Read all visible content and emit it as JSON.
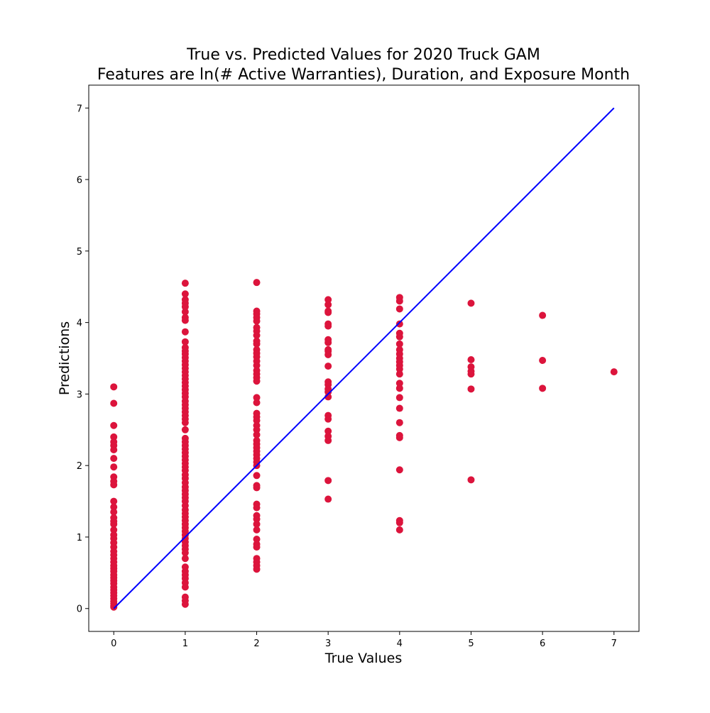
{
  "chart_data": {
    "type": "scatter",
    "title": "True vs. Predicted Values for 2020 Truck GAM",
    "subtitle": "Features are ln(# Active Warranties), Duration, and Exposure Month",
    "xlabel": "True Values",
    "ylabel": "Predictions",
    "xlim": [
      -0.35,
      7.35
    ],
    "ylim": [
      -0.32,
      7.32
    ],
    "xticks": [
      0,
      1,
      2,
      3,
      4,
      5,
      6,
      7
    ],
    "yticks": [
      0,
      1,
      2,
      3,
      4,
      5,
      6,
      7
    ],
    "grid": false,
    "legend": "none",
    "colors": {
      "points": "#dc143c",
      "reference_line": "#0000ff",
      "axes": "#000000"
    },
    "reference_line": {
      "x": [
        0,
        7
      ],
      "y": [
        0,
        7
      ]
    },
    "series": [
      {
        "x_value": 0,
        "y": [
          3.1,
          2.87,
          2.56,
          2.4,
          2.33,
          2.28,
          2.22,
          2.1,
          1.98,
          1.84,
          1.78,
          1.73,
          1.5,
          1.42,
          1.35,
          1.27,
          1.22,
          1.18,
          1.1,
          1.03,
          0.98,
          0.92,
          0.86,
          0.8,
          0.75,
          0.7,
          0.65,
          0.6,
          0.56,
          0.52,
          0.47,
          0.43,
          0.39,
          0.35,
          0.3,
          0.26,
          0.22,
          0.18,
          0.14,
          0.1,
          0.07,
          0.04,
          0.02
        ]
      },
      {
        "x_value": 1,
        "y": [
          4.55,
          4.4,
          4.32,
          4.27,
          4.22,
          4.15,
          4.07,
          4.03,
          3.87,
          3.73,
          3.65,
          3.6,
          3.56,
          3.51,
          3.46,
          3.41,
          3.36,
          3.31,
          3.26,
          3.21,
          3.16,
          3.11,
          3.06,
          3.01,
          2.96,
          2.9,
          2.85,
          2.8,
          2.75,
          2.7,
          2.65,
          2.6,
          2.5,
          2.38,
          2.33,
          2.28,
          2.23,
          2.18,
          2.13,
          2.08,
          2.03,
          1.98,
          1.93,
          1.87,
          1.82,
          1.76,
          1.7,
          1.65,
          1.6,
          1.55,
          1.5,
          1.44,
          1.38,
          1.33,
          1.28,
          1.23,
          1.18,
          1.13,
          1.08,
          1.03,
          0.98,
          0.93,
          0.88,
          0.83,
          0.78,
          0.7,
          0.58,
          0.52,
          0.47,
          0.42,
          0.36,
          0.3,
          0.16,
          0.11,
          0.06
        ]
      },
      {
        "x_value": 2,
        "y": [
          4.56,
          4.16,
          4.12,
          4.07,
          4.02,
          3.93,
          3.88,
          3.82,
          3.74,
          3.7,
          3.62,
          3.57,
          3.52,
          3.46,
          3.4,
          3.33,
          3.28,
          3.23,
          3.18,
          2.95,
          2.88,
          2.73,
          2.68,
          2.63,
          2.56,
          2.5,
          2.43,
          2.35,
          2.3,
          2.25,
          2.2,
          2.15,
          2.1,
          2.05,
          2.0,
          1.86,
          1.72,
          1.69,
          1.46,
          1.41,
          1.3,
          1.25,
          1.18,
          1.1,
          0.97,
          0.9,
          0.86,
          0.7,
          0.65,
          0.6,
          0.55
        ]
      },
      {
        "x_value": 3,
        "y": [
          4.32,
          4.25,
          4.16,
          4.14,
          3.98,
          3.95,
          3.76,
          3.72,
          3.62,
          3.6,
          3.55,
          3.39,
          3.17,
          3.13,
          3.07,
          3.03,
          2.96,
          2.7,
          2.65,
          2.48,
          2.41,
          2.35,
          1.79,
          1.53
        ]
      },
      {
        "x_value": 4,
        "y": [
          4.35,
          4.3,
          4.19,
          3.98,
          3.85,
          3.8,
          3.7,
          3.62,
          3.56,
          3.5,
          3.45,
          3.4,
          3.35,
          3.28,
          3.15,
          3.08,
          2.95,
          2.8,
          2.6,
          2.42,
          2.39,
          1.94,
          1.23,
          1.2,
          1.1
        ]
      },
      {
        "x_value": 5,
        "y": [
          4.27,
          3.48,
          3.38,
          3.32,
          3.28,
          3.07,
          1.8
        ]
      },
      {
        "x_value": 6,
        "y": [
          4.1,
          3.47,
          3.08
        ]
      },
      {
        "x_value": 7,
        "y": [
          3.31
        ]
      }
    ]
  }
}
